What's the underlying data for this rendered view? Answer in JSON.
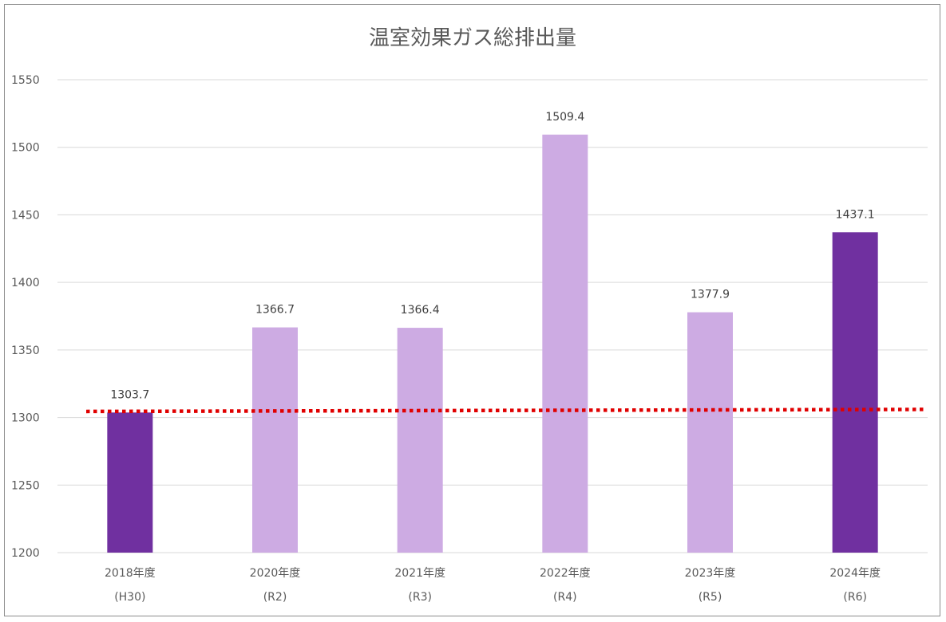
{
  "chart_data": {
    "type": "bar",
    "title": "温室効果ガス総排出量",
    "categories": [
      "2018年度",
      "2020年度",
      "2021年度",
      "2022年度",
      "2023年度",
      "2024年度"
    ],
    "category_sublabels": [
      "(H30)",
      "(R2)",
      "(R3)",
      "(R4)",
      "(R5)",
      "(R6)"
    ],
    "values": [
      1303.7,
      1366.7,
      1366.4,
      1509.4,
      1377.9,
      1437.1
    ],
    "data_labels": [
      "1303.7",
      "1366.7",
      "1366.4",
      "1509.4",
      "1377.9",
      "1437.1"
    ],
    "highlighted": [
      true,
      false,
      false,
      false,
      false,
      true
    ],
    "colors": {
      "highlight": "#7030a0",
      "normal": "#cdabe3",
      "reference_line": "#e00000"
    },
    "reference_line": {
      "y_start": 1304.5,
      "y_end": 1306.0,
      "style": "dotted"
    },
    "ylim": [
      1200,
      1550
    ],
    "yticks": [
      "1200",
      "1250",
      "1300",
      "1350",
      "1400",
      "1450",
      "1500",
      "1550"
    ],
    "grid": true,
    "legend": "none"
  }
}
